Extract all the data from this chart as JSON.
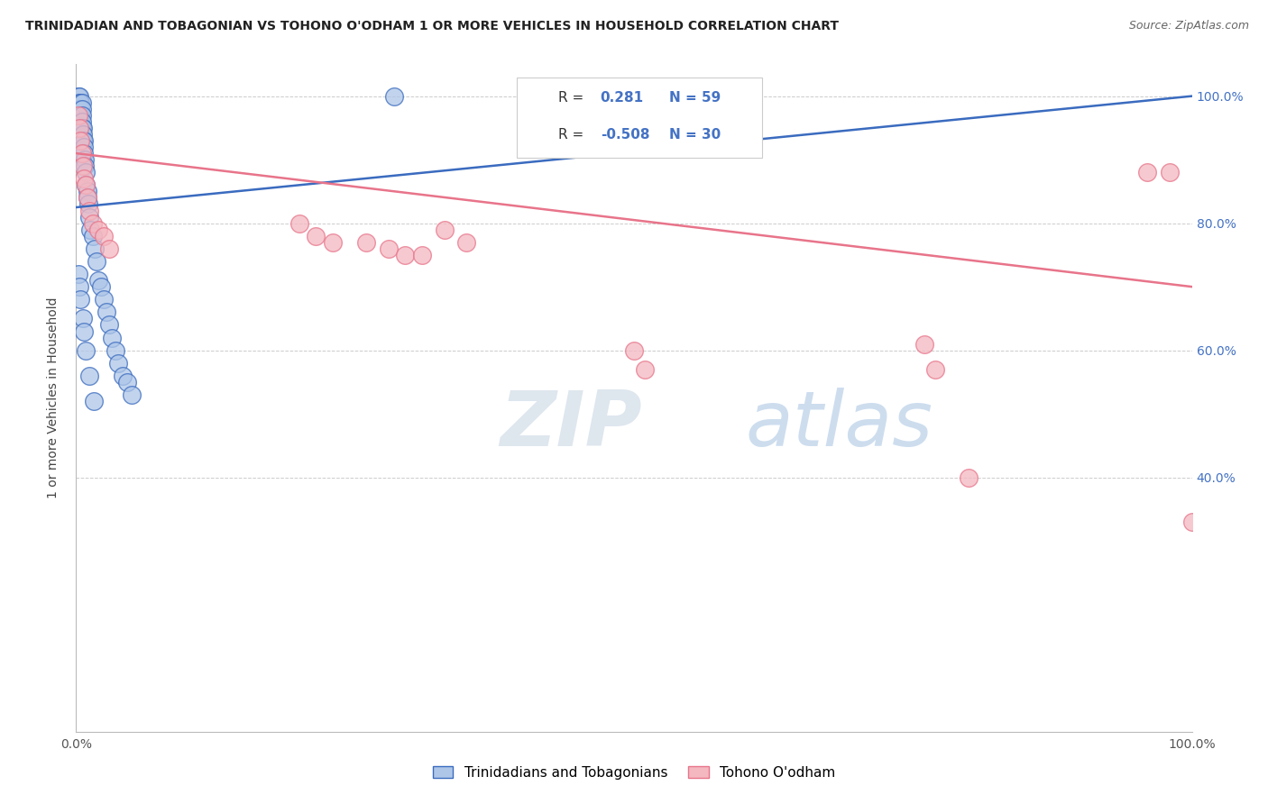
{
  "title": "TRINIDADIAN AND TOBAGONIAN VS TOHONO O'ODHAM 1 OR MORE VEHICLES IN HOUSEHOLD CORRELATION CHART",
  "source": "Source: ZipAtlas.com",
  "ylabel": "1 or more Vehicles in Household",
  "legend_label1": "Trinidadians and Tobagonians",
  "legend_label2": "Tohono O'odham",
  "R1": 0.281,
  "N1": 59,
  "R2": -0.508,
  "N2": 30,
  "blue_color": "#aec6e8",
  "pink_color": "#f4b8c1",
  "blue_line_color": "#3a6bbf",
  "pink_line_color": "#e8748a",
  "blue_points_x": [
    0.001,
    0.001,
    0.002,
    0.002,
    0.002,
    0.002,
    0.003,
    0.003,
    0.003,
    0.003,
    0.003,
    0.004,
    0.004,
    0.004,
    0.004,
    0.004,
    0.005,
    0.005,
    0.005,
    0.005,
    0.005,
    0.006,
    0.006,
    0.006,
    0.007,
    0.007,
    0.007,
    0.008,
    0.008,
    0.009,
    0.009,
    0.01,
    0.01,
    0.011,
    0.012,
    0.013,
    0.015,
    0.017,
    0.018,
    0.02,
    0.022,
    0.025,
    0.027,
    0.03,
    0.032,
    0.035,
    0.038,
    0.042,
    0.046,
    0.05,
    0.002,
    0.003,
    0.004,
    0.006,
    0.007,
    0.009,
    0.012,
    0.016,
    0.285
  ],
  "blue_points_y": [
    0.97,
    0.98,
    0.99,
    0.98,
    0.97,
    1.0,
    1.0,
    0.99,
    0.98,
    0.97,
    0.96,
    0.99,
    0.98,
    0.97,
    0.96,
    0.95,
    0.99,
    0.98,
    0.97,
    0.96,
    0.95,
    0.95,
    0.94,
    0.93,
    0.93,
    0.92,
    0.91,
    0.9,
    0.89,
    0.88,
    0.86,
    0.85,
    0.84,
    0.83,
    0.81,
    0.79,
    0.78,
    0.76,
    0.74,
    0.71,
    0.7,
    0.68,
    0.66,
    0.64,
    0.62,
    0.6,
    0.58,
    0.56,
    0.55,
    0.53,
    0.72,
    0.7,
    0.68,
    0.65,
    0.63,
    0.6,
    0.56,
    0.52,
    1.0
  ],
  "pink_points_x": [
    0.002,
    0.003,
    0.004,
    0.005,
    0.006,
    0.007,
    0.009,
    0.01,
    0.012,
    0.015,
    0.02,
    0.025,
    0.03,
    0.2,
    0.215,
    0.23,
    0.26,
    0.28,
    0.295,
    0.31,
    0.33,
    0.35,
    0.5,
    0.51,
    0.76,
    0.77,
    0.8,
    0.96,
    0.98,
    1.0
  ],
  "pink_points_y": [
    0.97,
    0.95,
    0.93,
    0.91,
    0.89,
    0.87,
    0.86,
    0.84,
    0.82,
    0.8,
    0.79,
    0.78,
    0.76,
    0.8,
    0.78,
    0.77,
    0.77,
    0.76,
    0.75,
    0.75,
    0.79,
    0.77,
    0.6,
    0.57,
    0.61,
    0.57,
    0.4,
    0.88,
    0.88,
    0.33
  ],
  "blue_line_x": [
    0.0,
    1.0
  ],
  "blue_line_y": [
    0.825,
    1.0
  ],
  "pink_line_x": [
    0.0,
    1.0
  ],
  "pink_line_y": [
    0.91,
    0.7
  ],
  "xlim": [
    0.0,
    1.0
  ],
  "ylim": [
    0.0,
    1.05
  ],
  "yticks": [
    0.4,
    0.6,
    0.8,
    1.0
  ],
  "ytick_labels": [
    "40.0%",
    "60.0%",
    "80.0%",
    "100.0%"
  ],
  "background_color": "#ffffff",
  "grid_color": "#cccccc"
}
